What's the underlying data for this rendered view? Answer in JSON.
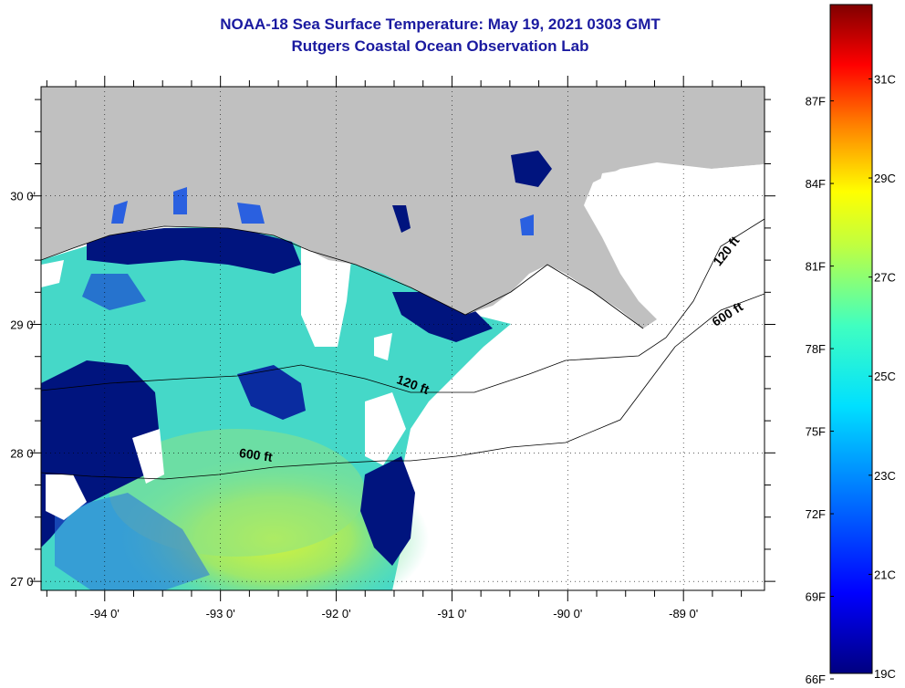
{
  "header": {
    "title_line1": "NOAA-18 Sea Surface Temperature:  May 19, 2021 0303 GMT",
    "title_line2": "Rutgers Coastal Ocean Observation Lab"
  },
  "map": {
    "lon_range": [
      -94.55,
      -88.3
    ],
    "lat_range": [
      26.93,
      30.85
    ],
    "lon_labels": [
      {
        "lon": -94,
        "text": "-94 0'"
      },
      {
        "lon": -93,
        "text": "-93 0'"
      },
      {
        "lon": -92,
        "text": "-92 0'"
      },
      {
        "lon": -91,
        "text": "-91 0'"
      },
      {
        "lon": -90,
        "text": "-90 0'"
      },
      {
        "lon": -89,
        "text": "-89 0'"
      }
    ],
    "lat_labels": [
      {
        "lat": 30,
        "text": "30 0'"
      },
      {
        "lat": 29,
        "text": "29 0'"
      },
      {
        "lat": 28,
        "text": "28 0'"
      },
      {
        "lat": 27,
        "text": "27 0'"
      }
    ],
    "contour_labels": [
      {
        "text": "120 ft",
        "lon": -91.35,
        "lat": 28.5,
        "angle": 20
      },
      {
        "text": "600 ft",
        "lon": -92.7,
        "lat": 27.95,
        "angle": 8
      },
      {
        "text": "120 ft",
        "lon": -88.6,
        "lat": 29.55,
        "angle": -52
      },
      {
        "text": "600 ft",
        "lon": -88.6,
        "lat": 29.05,
        "angle": -32
      }
    ],
    "colors": {
      "land": "#c0c0c0",
      "cloud": "#ffffff",
      "cold": "#00107a",
      "mid": "#3ad8d0",
      "warm": "#c8f040"
    }
  },
  "colorbar": {
    "temp_range_c": [
      19,
      32.5
    ],
    "celsius_labels": [
      {
        "value": 31,
        "text": "31C"
      },
      {
        "value": 29,
        "text": "29C"
      },
      {
        "value": 27,
        "text": "27C"
      },
      {
        "value": 25,
        "text": "25C"
      },
      {
        "value": 23,
        "text": "23C"
      },
      {
        "value": 21,
        "text": "21C"
      },
      {
        "value": 19,
        "text": "19C"
      }
    ],
    "fahrenheit_labels": [
      {
        "value": 87,
        "text": "87F"
      },
      {
        "value": 84,
        "text": "84F"
      },
      {
        "value": 81,
        "text": "81F"
      },
      {
        "value": 78,
        "text": "78F"
      },
      {
        "value": 75,
        "text": "75F"
      },
      {
        "value": 72,
        "text": "72F"
      },
      {
        "value": 69,
        "text": "69F"
      },
      {
        "value": 66,
        "text": "66F"
      }
    ]
  }
}
